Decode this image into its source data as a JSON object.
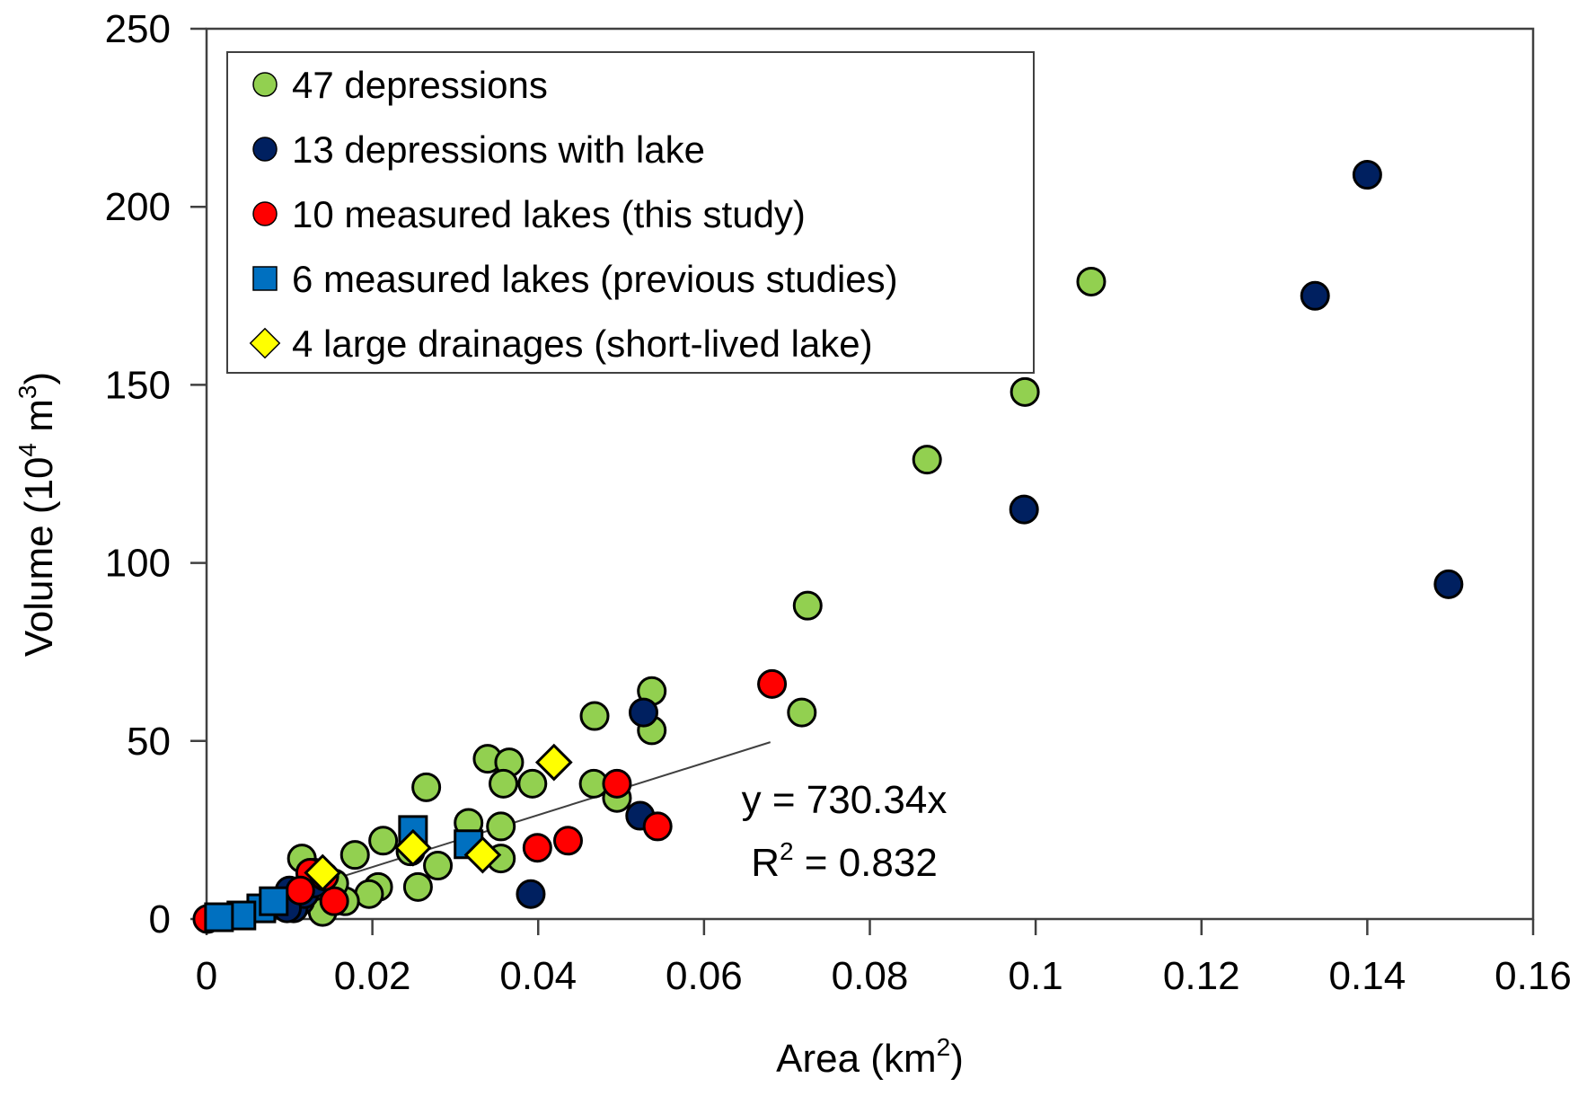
{
  "chart_data": {
    "type": "scatter",
    "title": "",
    "xlabel": "Area (km",
    "xlabel_sup": "2",
    "xlabel_end": ")",
    "ylabel": "Volume (10",
    "ylabel_sup1": "4",
    "ylabel_mid": " m",
    "ylabel_sup2": "3",
    "ylabel_end": ")",
    "xlim": [
      0,
      0.16
    ],
    "ylim": [
      0,
      250
    ],
    "x_ticks": [
      0,
      0.02,
      0.04,
      0.06,
      0.08,
      0.1,
      0.12,
      0.14,
      0.16
    ],
    "x_tick_labels": [
      "0",
      "0.02",
      "0.04",
      "0.06",
      "0.08",
      "0.1",
      "0.12",
      "0.14",
      "0.16"
    ],
    "y_ticks": [
      0,
      50,
      100,
      150,
      200,
      250
    ],
    "y_tick_labels": [
      "0",
      "50",
      "100",
      "150",
      "200",
      "250"
    ],
    "grid": false,
    "legend_position": "top-left",
    "series": [
      {
        "name": "47 depressions",
        "marker": "circle",
        "color": "#92d050",
        "points": [
          [
            0.1067,
            179
          ],
          [
            0.0987,
            148
          ],
          [
            0.0869,
            129
          ],
          [
            0.0725,
            88
          ],
          [
            0.0718,
            58
          ],
          [
            0.0537,
            64
          ],
          [
            0.0537,
            53
          ],
          [
            0.0468,
            57
          ],
          [
            0.0467,
            38
          ],
          [
            0.0495,
            34
          ],
          [
            0.0339,
            45
          ],
          [
            0.0365,
            44
          ],
          [
            0.0358,
            38
          ],
          [
            0.0393,
            38
          ],
          [
            0.0265,
            37
          ],
          [
            0.0316,
            27
          ],
          [
            0.0355,
            26
          ],
          [
            0.0355,
            17
          ],
          [
            0.0213,
            22
          ],
          [
            0.0179,
            18
          ],
          [
            0.0246,
            19
          ],
          [
            0.0279,
            15
          ],
          [
            0.0255,
            9
          ],
          [
            0.0115,
            17
          ],
          [
            0.0207,
            9
          ],
          [
            0.0196,
            7
          ],
          [
            0.014,
            2
          ],
          [
            0.0167,
            5
          ],
          [
            0.0154,
            10
          ],
          [
            0.013,
            13
          ]
        ]
      },
      {
        "name": "13 depressions with lake",
        "marker": "circle",
        "color": "#002060",
        "points": [
          [
            0.14,
            209
          ],
          [
            0.1337,
            175
          ],
          [
            0.0986,
            115
          ],
          [
            0.1498,
            94
          ],
          [
            0.0527,
            58
          ],
          [
            0.0523,
            29
          ],
          [
            0.0391,
            7
          ],
          [
            0.01,
            8
          ],
          [
            0.0113,
            5
          ],
          [
            0.0105,
            3
          ],
          [
            0.0118,
            7
          ],
          [
            0.0097,
            3
          ],
          [
            0.013,
            10
          ]
        ]
      },
      {
        "name": "10 measured lakes (this study)",
        "marker": "circle",
        "color": "#ff0000",
        "points": [
          [
            0.0682,
            66
          ],
          [
            0.0495,
            38
          ],
          [
            0.0544,
            26
          ],
          [
            0.0436,
            22
          ],
          [
            0.0399,
            20
          ],
          [
            0.0125,
            13
          ],
          [
            0.0154,
            5
          ],
          [
            0.0001,
            0
          ],
          [
            0.0113,
            8
          ],
          [
            0.0142,
            12
          ]
        ]
      },
      {
        "name": "6 measured lakes (previous studies)",
        "marker": "square",
        "color": "#0070c0",
        "points": [
          [
            0.0249,
            25
          ],
          [
            0.0316,
            21
          ],
          [
            0.0066,
            3
          ],
          [
            0.0042,
            1
          ],
          [
            0.0015,
            0.5
          ],
          [
            0.0081,
            5
          ]
        ]
      },
      {
        "name": "4 large drainages (short-lived lake)",
        "marker": "diamond",
        "color": "#ffff00",
        "points": [
          [
            0.0419,
            44
          ],
          [
            0.0249,
            20
          ],
          [
            0.0333,
            18
          ],
          [
            0.014,
            13
          ]
        ]
      }
    ],
    "trendline": {
      "slope": 730.34,
      "x_range": [
        0,
        0.068
      ],
      "color": "#404040",
      "equation": "y = 730.34x",
      "r2_label": "R",
      "r2_sup": "2",
      "r2_value": " = 0.832"
    }
  }
}
